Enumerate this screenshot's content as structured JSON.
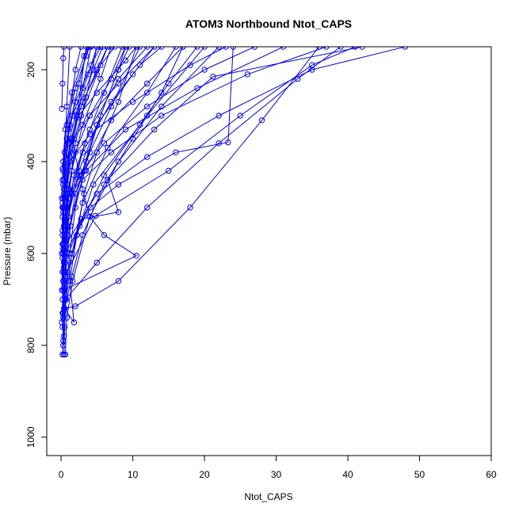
{
  "chart_data": {
    "type": "line",
    "title": "ATOM3 Northbound Ntot_CAPS",
    "xlabel": "Ntot_CAPS",
    "ylabel": "Pressure (mbar)",
    "xlim": [
      -2,
      60
    ],
    "ylim": [
      1040,
      150
    ],
    "y_reversed": true,
    "grid": false,
    "xticks": [
      0,
      10,
      20,
      30,
      40,
      50,
      60
    ],
    "yticks": [
      200,
      400,
      600,
      800,
      1000
    ],
    "color": "#0000ff",
    "series": [
      {
        "points": [
          [
            0.4,
            820
          ],
          [
            0.5,
            760
          ],
          [
            0.6,
            700
          ],
          [
            1.2,
            600
          ],
          [
            2,
            500
          ],
          [
            3.5,
            400
          ],
          [
            5.5,
            300
          ],
          [
            8,
            200
          ],
          [
            9.5,
            150
          ]
        ]
      },
      {
        "points": [
          [
            0.3,
            800
          ],
          [
            0.5,
            720
          ],
          [
            1.5,
            650
          ],
          [
            3,
            560
          ],
          [
            6,
            450
          ],
          [
            10,
            350
          ],
          [
            14,
            250
          ],
          [
            17,
            150
          ]
        ]
      },
      {
        "points": [
          [
            0.6,
            820
          ],
          [
            0.8,
            740
          ],
          [
            1.6,
            660
          ],
          [
            4,
            520
          ],
          [
            8,
            400
          ],
          [
            14,
            280
          ],
          [
            22,
            150
          ]
        ]
      },
      {
        "points": [
          [
            0.4,
            780
          ],
          [
            0.5,
            680
          ],
          [
            1,
            560
          ],
          [
            2,
            470
          ],
          [
            4,
            380
          ],
          [
            7,
            280
          ],
          [
            11,
            150
          ]
        ]
      },
      {
        "points": [
          [
            0.2,
            760
          ],
          [
            0.4,
            640
          ],
          [
            0.8,
            540
          ],
          [
            1.8,
            430
          ],
          [
            4,
            330
          ],
          [
            8,
            220
          ],
          [
            12,
            150
          ]
        ]
      },
      {
        "points": [
          [
            0.3,
            740
          ],
          [
            0.6,
            620
          ],
          [
            1,
            520
          ],
          [
            2.5,
            420
          ],
          [
            5,
            320
          ],
          [
            10,
            210
          ],
          [
            13,
            150
          ]
        ]
      },
      {
        "points": [
          [
            0.5,
            720
          ],
          [
            1.8,
            750
          ],
          [
            1.2,
            660
          ],
          [
            2.2,
            560
          ],
          [
            4.5,
            450
          ],
          [
            12,
            300
          ],
          [
            20,
            150
          ]
        ]
      },
      {
        "points": [
          [
            0.2,
            700
          ],
          [
            0.3,
            600
          ],
          [
            0.4,
            500
          ],
          [
            0.6,
            420
          ],
          [
            1,
            330
          ],
          [
            2,
            200
          ],
          [
            2.8,
            150
          ]
        ]
      },
      {
        "points": [
          [
            0.1,
            680
          ],
          [
            0.2,
            580
          ],
          [
            0.3,
            480
          ],
          [
            0.5,
            380
          ],
          [
            0.8,
            280
          ],
          [
            1.2,
            150
          ]
        ]
      },
      {
        "points": [
          [
            0.3,
            660
          ],
          [
            0.5,
            560
          ],
          [
            1,
            470
          ],
          [
            2,
            360
          ],
          [
            3.5,
            260
          ],
          [
            5,
            150
          ]
        ]
      },
      {
        "points": [
          [
            0.2,
            640
          ],
          [
            0.4,
            540
          ],
          [
            0.9,
            450
          ],
          [
            1.8,
            350
          ],
          [
            3,
            240
          ],
          [
            4.2,
            150
          ]
        ]
      },
      {
        "points": [
          [
            0.4,
            620
          ],
          [
            0.7,
            530
          ],
          [
            1.5,
            420
          ],
          [
            3,
            320
          ],
          [
            5.5,
            220
          ],
          [
            7,
            150
          ]
        ]
      },
      {
        "points": [
          [
            0.1,
            600
          ],
          [
            0.2,
            500
          ],
          [
            0.5,
            410
          ],
          [
            1.2,
            320
          ],
          [
            2.5,
            230
          ],
          [
            3.8,
            150
          ]
        ]
      },
      {
        "points": [
          [
            0.3,
            580
          ],
          [
            1.5,
            600
          ],
          [
            2.2,
            560
          ],
          [
            3.2,
            470
          ],
          [
            5,
            380
          ],
          [
            8,
            270
          ],
          [
            10.5,
            150
          ]
        ]
      },
      {
        "points": [
          [
            0.2,
            560
          ],
          [
            0.5,
            480
          ],
          [
            1.2,
            390
          ],
          [
            2.8,
            300
          ],
          [
            5,
            210
          ],
          [
            6.5,
            150
          ]
        ]
      },
      {
        "points": [
          [
            0.5,
            540
          ],
          [
            1,
            460
          ],
          [
            2,
            380
          ],
          [
            4,
            300
          ],
          [
            7,
            220
          ],
          [
            9,
            150
          ]
        ]
      },
      {
        "points": [
          [
            0.2,
            520
          ],
          [
            0.4,
            440
          ],
          [
            1,
            360
          ],
          [
            2.2,
            290
          ],
          [
            4.5,
            200
          ],
          [
            5.8,
            150
          ]
        ]
      },
      {
        "points": [
          [
            0.3,
            500
          ],
          [
            0.6,
            430
          ],
          [
            1.4,
            350
          ],
          [
            3,
            270
          ],
          [
            5.5,
            190
          ],
          [
            7.5,
            150
          ]
        ]
      },
      {
        "points": [
          [
            0.1,
            480
          ],
          [
            0.3,
            400
          ],
          [
            0.8,
            320
          ],
          [
            2,
            240
          ],
          [
            3.5,
            170
          ],
          [
            4,
            150
          ]
        ]
      },
      {
        "points": [
          [
            0.4,
            460
          ],
          [
            1.2,
            360
          ],
          [
            2.8,
            280
          ],
          [
            5,
            200
          ],
          [
            6.5,
            150
          ]
        ]
      },
      {
        "points": [
          [
            0.2,
            440
          ],
          [
            0.5,
            380
          ],
          [
            1.6,
            300
          ],
          [
            3.8,
            210
          ],
          [
            5,
            150
          ]
        ]
      },
      {
        "points": [
          [
            0.3,
            420
          ],
          [
            0.8,
            350
          ],
          [
            2,
            270
          ],
          [
            4.2,
            190
          ],
          [
            5.5,
            150
          ]
        ]
      },
      {
        "points": [
          [
            0.2,
            415
          ],
          [
            0.6,
            330
          ],
          [
            1.5,
            250
          ],
          [
            3.2,
            170
          ],
          [
            3.8,
            150
          ]
        ]
      },
      {
        "points": [
          [
            0.4,
            720
          ],
          [
            2,
            715
          ],
          [
            8,
            660
          ],
          [
            18,
            500
          ],
          [
            28,
            310
          ],
          [
            36,
            150
          ]
        ]
      },
      {
        "points": [
          [
            0.6,
            700
          ],
          [
            5,
            620
          ],
          [
            12,
            500
          ],
          [
            22,
            360
          ],
          [
            33,
            220
          ],
          [
            39,
            150
          ]
        ]
      },
      {
        "points": [
          [
            0.3,
            680
          ],
          [
            10.5,
            605
          ],
          [
            6,
            560
          ],
          [
            4,
            520
          ],
          [
            3,
            460
          ],
          [
            1.5,
            350
          ],
          [
            2.2,
            300
          ],
          [
            3.5,
            150
          ]
        ]
      },
      {
        "points": [
          [
            0.5,
            650
          ],
          [
            4.8,
            518
          ],
          [
            15,
            420
          ],
          [
            25,
            300
          ],
          [
            35,
            190
          ],
          [
            41,
            150
          ]
        ]
      },
      {
        "points": [
          [
            0.4,
            630
          ],
          [
            2.8,
            525
          ],
          [
            8,
            510
          ],
          [
            6.5,
            440
          ],
          [
            13,
            330
          ],
          [
            21.2,
            215
          ],
          [
            42,
            150
          ]
        ]
      },
      {
        "points": [
          [
            0.2,
            610
          ],
          [
            4.1,
            500
          ],
          [
            8,
            450
          ],
          [
            16,
            380
          ],
          [
            23.3,
            358
          ],
          [
            24,
            150
          ]
        ]
      },
      {
        "points": [
          [
            0.3,
            590
          ],
          [
            5,
            470
          ],
          [
            12,
            390
          ],
          [
            22,
            300
          ],
          [
            35,
            200
          ],
          [
            48,
            150
          ]
        ]
      },
      {
        "points": [
          [
            0.6,
            570
          ],
          [
            3,
            440
          ],
          [
            7,
            380
          ],
          [
            14,
            300
          ],
          [
            26,
            210
          ],
          [
            37,
            150
          ]
        ]
      },
      {
        "points": [
          [
            0.2,
            550
          ],
          [
            1.5,
            470
          ],
          [
            3.5,
            420
          ],
          [
            9,
            330
          ],
          [
            19,
            240
          ],
          [
            31,
            150
          ]
        ]
      },
      {
        "points": [
          [
            0.5,
            530
          ],
          [
            2.5,
            430
          ],
          [
            6,
            360
          ],
          [
            12,
            280
          ],
          [
            20,
            200
          ],
          [
            27,
            150
          ]
        ]
      },
      {
        "points": [
          [
            0.3,
            510
          ],
          [
            1.2,
            400
          ],
          [
            4,
            340
          ],
          [
            10,
            270
          ],
          [
            18,
            190
          ],
          [
            23,
            150
          ]
        ]
      },
      {
        "points": [
          [
            0.2,
            490
          ],
          [
            3.3,
            420
          ],
          [
            7,
            310
          ],
          [
            12,
            230
          ],
          [
            17,
            150
          ]
        ]
      },
      {
        "points": [
          [
            0.4,
            470
          ],
          [
            1.5,
            355
          ],
          [
            4,
            300
          ],
          [
            8,
            230
          ],
          [
            13,
            150
          ]
        ]
      },
      {
        "points": [
          [
            0.3,
            450
          ],
          [
            2.2,
            305
          ],
          [
            5,
            250
          ],
          [
            9,
            180
          ],
          [
            10.5,
            150
          ]
        ]
      },
      {
        "points": [
          [
            0.1,
            285
          ],
          [
            0.2,
            230
          ],
          [
            0.3,
            175
          ],
          [
            0.4,
            150
          ]
        ]
      },
      {
        "points": [
          [
            0.5,
            600
          ],
          [
            1,
            480
          ],
          [
            3,
            380
          ],
          [
            7,
            270
          ],
          [
            11,
            190
          ],
          [
            14,
            150
          ]
        ]
      },
      {
        "points": [
          [
            0.2,
            730
          ],
          [
            0.9,
            640
          ],
          [
            2.6,
            540
          ],
          [
            6,
            430
          ],
          [
            11,
            320
          ],
          [
            15,
            230
          ],
          [
            19,
            150
          ]
        ]
      },
      {
        "points": [
          [
            0.3,
            790
          ],
          [
            0.7,
            700
          ],
          [
            1.4,
            610
          ],
          [
            3,
            490
          ],
          [
            6.5,
            370
          ],
          [
            12,
            250
          ],
          [
            16,
            150
          ]
        ]
      },
      {
        "points": [
          [
            0.1,
            750
          ],
          [
            0.3,
            660
          ],
          [
            0.7,
            570
          ],
          [
            1.5,
            470
          ],
          [
            3.3,
            360
          ],
          [
            6,
            250
          ],
          [
            8.5,
            150
          ]
        ]
      },
      {
        "points": [
          [
            0.2,
            820
          ],
          [
            0.3,
            730
          ],
          [
            0.6,
            640
          ],
          [
            1.3,
            540
          ],
          [
            2.8,
            430
          ],
          [
            5,
            320
          ],
          [
            8,
            200
          ],
          [
            9,
            150
          ]
        ]
      }
    ]
  }
}
